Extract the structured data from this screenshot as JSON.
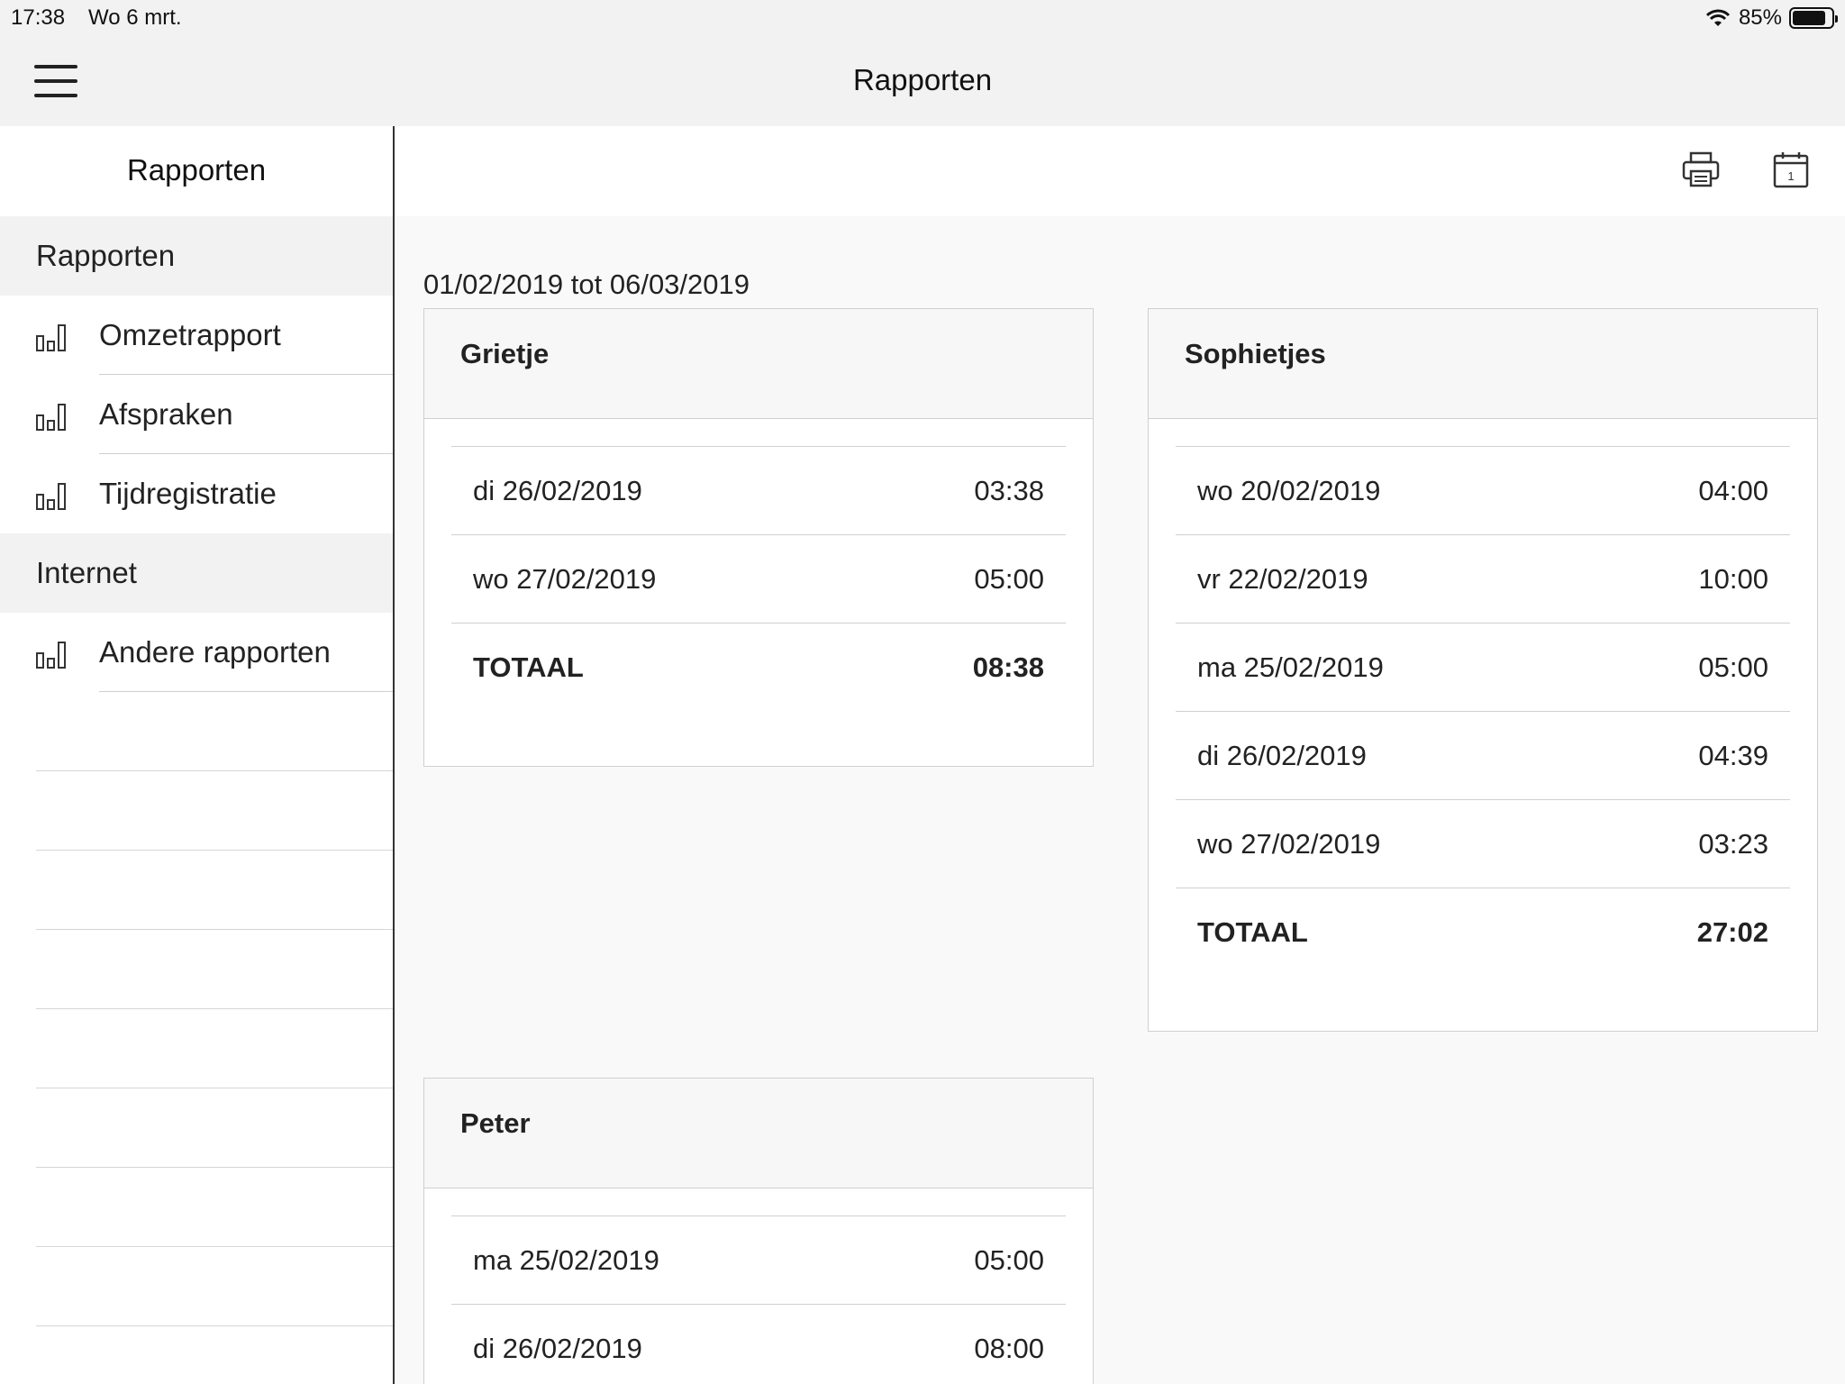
{
  "status": {
    "time": "17:38",
    "date": "Wo 6 mrt.",
    "battery": "85%",
    "battery_level": 0.85
  },
  "header": {
    "title": "Rapporten"
  },
  "sidebar": {
    "title": "Rapporten",
    "sections": [
      {
        "header": "Rapporten",
        "items": [
          {
            "label": "Omzetrapport"
          },
          {
            "label": "Afspraken"
          },
          {
            "label": "Tijdregistratie"
          }
        ]
      },
      {
        "header": "Internet",
        "items": [
          {
            "label": "Andere rapporten"
          }
        ]
      }
    ]
  },
  "main": {
    "range": "01/02/2019 tot 06/03/2019",
    "cards": [
      {
        "name": "Grietje",
        "rows": [
          {
            "date": "di 26/02/2019",
            "value": "03:38"
          },
          {
            "date": "wo 27/02/2019",
            "value": "05:00"
          }
        ],
        "total_label": "TOTAAL",
        "total": "08:38"
      },
      {
        "name": "Sophietjes",
        "rows": [
          {
            "date": "wo 20/02/2019",
            "value": "04:00"
          },
          {
            "date": "vr 22/02/2019",
            "value": "10:00"
          },
          {
            "date": "ma 25/02/2019",
            "value": "05:00"
          },
          {
            "date": "di 26/02/2019",
            "value": "04:39"
          },
          {
            "date": "wo 27/02/2019",
            "value": "03:23"
          }
        ],
        "total_label": "TOTAAL",
        "total": "27:02"
      },
      {
        "name": "Peter",
        "rows": [
          {
            "date": "ma 25/02/2019",
            "value": "05:00"
          },
          {
            "date": "di 26/02/2019",
            "value": "08:00"
          }
        ]
      }
    ],
    "toolbar": {
      "print_icon": "printer-icon",
      "calendar_icon": "calendar-icon",
      "calendar_day": "1"
    }
  }
}
